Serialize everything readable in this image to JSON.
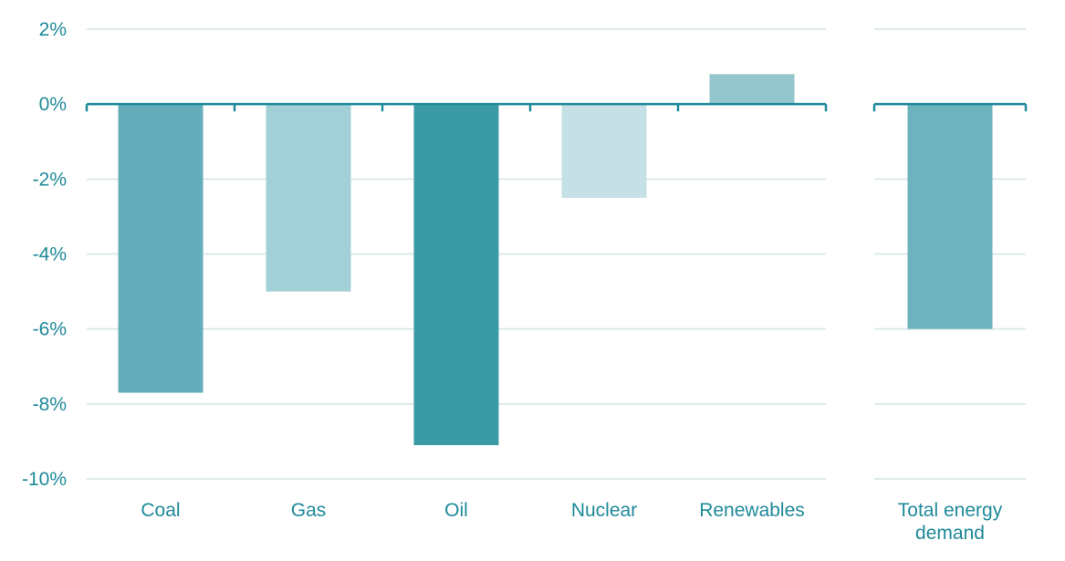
{
  "chart_data": {
    "type": "bar",
    "title": "",
    "xlabel": "",
    "ylabel": "",
    "ylim": [
      -10,
      2
    ],
    "yticks": [
      2,
      0,
      -2,
      -4,
      -6,
      -8,
      -10
    ],
    "ytick_labels": [
      "2%",
      "0%",
      "-2%",
      "-4%",
      "-6%",
      "-8%",
      "-10%"
    ],
    "grid": true,
    "legend": "none",
    "panels": [
      {
        "categories": [
          "Coal",
          "Gas",
          "Oil",
          "Nuclear",
          "Renewables"
        ],
        "values": [
          -7.7,
          -5.0,
          -9.1,
          -2.5,
          0.8
        ],
        "colors": [
          "#63aeba",
          "#a3d0d6",
          "#3a9aa6",
          "#c6e1e5",
          "#93c6cd"
        ]
      },
      {
        "categories": [
          "Total energy demand"
        ],
        "values": [
          -6.0
        ],
        "colors": [
          "#6cb3be"
        ]
      }
    ]
  },
  "colors": {
    "axis": "#1f8a9a",
    "grid": "#dde9eb",
    "label": "#1f8a9a"
  }
}
